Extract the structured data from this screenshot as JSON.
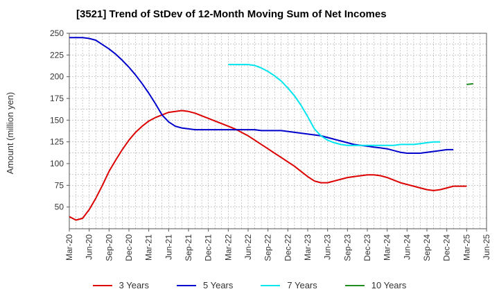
{
  "chart_data": {
    "type": "line",
    "title": "[3521]  Trend of StDev of 12-Month Moving Sum of Net Incomes",
    "ylabel": "Amount (million yen)",
    "xlabel": "",
    "ylim": [
      25,
      250
    ],
    "yticks": [
      50,
      75,
      100,
      125,
      150,
      175,
      200,
      225,
      250
    ],
    "xtick_labels": [
      "Mar-20",
      "Jun-20",
      "Sep-20",
      "Dec-20",
      "Mar-21",
      "Jun-21",
      "Sep-21",
      "Dec-21",
      "Mar-22",
      "Jun-22",
      "Sep-22",
      "Dec-22",
      "Mar-23",
      "Jun-23",
      "Sep-23",
      "Dec-23",
      "Mar-24",
      "Jun-24",
      "Sep-24",
      "Dec-24",
      "Mar-25",
      "Jun-25"
    ],
    "grid": true,
    "legend_position": "bottom",
    "series": [
      {
        "name": "3 Years",
        "color": "#dd0000",
        "start_index": 0,
        "values": [
          39,
          35,
          37,
          47,
          60,
          75,
          91,
          104,
          116,
          127,
          136,
          143,
          149,
          153,
          156,
          159,
          160,
          161,
          160,
          158,
          155,
          152,
          149,
          146,
          143,
          140,
          136,
          132,
          127,
          122,
          117,
          112,
          107,
          102,
          97,
          91,
          85,
          80,
          78,
          78,
          80,
          82,
          84,
          85,
          86,
          87,
          87,
          86,
          84,
          81,
          78,
          76,
          74,
          72,
          70,
          69,
          70,
          72,
          74,
          74,
          74
        ]
      },
      {
        "name": "5 Years",
        "color": "#0000cc",
        "start_index": 0,
        "values": [
          245,
          245,
          245,
          244,
          242,
          237,
          232,
          226,
          219,
          211,
          202,
          192,
          181,
          169,
          156,
          148,
          143,
          141,
          140,
          139,
          139,
          139,
          139,
          139,
          139,
          139,
          139,
          139,
          139,
          138,
          138,
          138,
          138,
          137,
          136,
          135,
          134,
          133,
          132,
          130,
          128,
          126,
          124,
          122,
          121,
          120,
          119,
          118,
          117,
          115,
          113,
          112,
          112,
          112,
          113,
          114,
          115,
          116,
          116
        ]
      },
      {
        "name": "7 Years",
        "color": "#00e5ee",
        "start_index": 24,
        "values": [
          214,
          214,
          214,
          214,
          213,
          210,
          206,
          201,
          195,
          187,
          178,
          167,
          154,
          140,
          132,
          127,
          124,
          122,
          121,
          121,
          121,
          121,
          121,
          121,
          121,
          121,
          122,
          122,
          122,
          123,
          124,
          125,
          125
        ]
      },
      {
        "name": "10 Years",
        "color": "#228b22",
        "start_index": 60,
        "values": [
          191,
          192
        ]
      }
    ]
  }
}
